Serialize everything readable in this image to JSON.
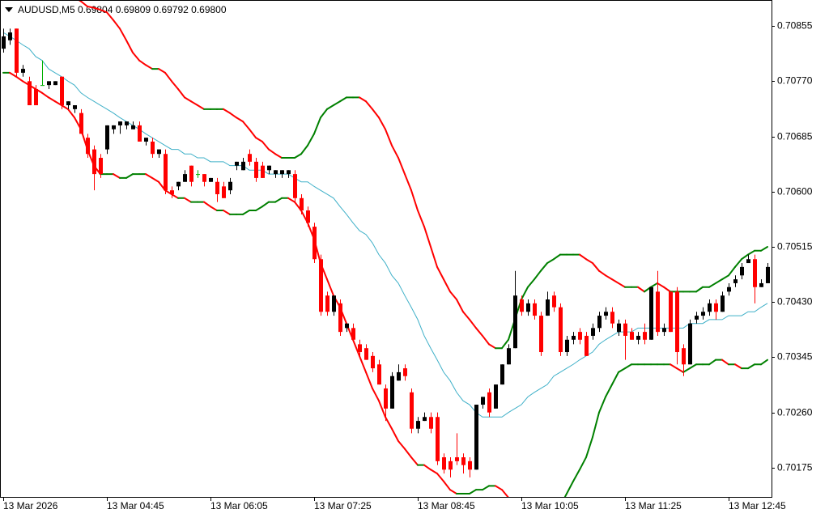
{
  "chart_data": {
    "type": "candlestick",
    "title": "AUDUSD,M5  0.69804 0.69809 0.69792 0.69800",
    "up_color": "#000000",
    "down_color": "#ff0000",
    "doji_color": "#00b000",
    "ylim": [
      0.7013,
      0.70895
    ],
    "yticks": [
      0.70855,
      {
        "value": 0.7077,
        "label": "0.70770"
      },
      0.70685,
      {
        "value": 0.706,
        "label": "0.70600"
      },
      0.70515,
      {
        "value": 0.7043,
        "label": "0.70430"
      },
      0.70345,
      {
        "value": 0.7026,
        "label": "0.70260"
      },
      0.70175
    ],
    "categories": [
      "13 Mar 2026",
      null,
      null,
      null,
      null,
      null,
      null,
      null,
      null,
      null,
      null,
      null,
      null,
      null,
      null,
      null,
      "13 Mar 04:45",
      null,
      null,
      null,
      null,
      null,
      null,
      null,
      null,
      null,
      null,
      null,
      null,
      null,
      null,
      null,
      "13 Mar 06:05",
      null,
      null,
      null,
      null,
      null,
      null,
      null,
      null,
      null,
      null,
      null,
      null,
      null,
      null,
      null,
      "13 Mar 07:25",
      null,
      null,
      null,
      null,
      null,
      null,
      null,
      null,
      null,
      null,
      null,
      null,
      null,
      null,
      null,
      "13 Mar 08:45",
      null,
      null,
      null,
      null,
      null,
      null,
      null,
      null,
      null,
      null,
      null,
      null,
      null,
      null,
      null,
      "13 Mar 10:05",
      null,
      null,
      null,
      null,
      null,
      null,
      null,
      null,
      null,
      null,
      null,
      null,
      null,
      null,
      null,
      "13 Mar 11:25",
      null,
      null,
      null,
      null,
      null,
      null,
      null,
      null,
      null,
      null,
      null,
      null,
      null,
      null,
      null,
      "13 Mar 12:45",
      null,
      null,
      null,
      null,
      null,
      null
    ],
    "ohlc": [
      [
        0.7082,
        0.70851,
        0.70814,
        0.70839
      ],
      [
        0.70833,
        0.70851,
        0.70826,
        0.70845
      ],
      [
        0.70851,
        0.70851,
        0.70777,
        0.70783
      ],
      [
        0.70783,
        0.70795,
        0.70777,
        0.70789
      ],
      [
        0.7077,
        0.70777,
        0.70733,
        0.70733
      ],
      [
        0.70758,
        0.70764,
        0.70733,
        0.70733
      ],
      [
        0.70764,
        0.70802,
        0.70764,
        0.70764
      ],
      [
        0.70764,
        0.7077,
        0.70758,
        0.7077
      ],
      [
        0.70764,
        0.7077,
        0.70764,
        0.7077
      ],
      [
        0.70777,
        0.70777,
        0.70727,
        0.70733
      ],
      [
        0.70733,
        0.70739,
        0.70727,
        0.70739
      ],
      [
        0.70727,
        0.70733,
        0.70721,
        0.70733
      ],
      [
        0.70721,
        0.70727,
        0.70689,
        0.70689
      ],
      [
        0.70683,
        0.70689,
        0.70652,
        0.70658
      ],
      [
        0.70665,
        0.70671,
        0.70602,
        0.70627
      ],
      [
        0.70652,
        0.70658,
        0.70621,
        0.70627
      ],
      [
        0.70665,
        0.70702,
        0.70658,
        0.70702
      ],
      [
        0.70696,
        0.70702,
        0.70689,
        0.70702
      ],
      [
        0.70702,
        0.70708,
        0.70689,
        0.70708
      ],
      [
        0.70702,
        0.70708,
        0.70696,
        0.70708
      ],
      [
        0.70696,
        0.70708,
        0.70696,
        0.70702
      ],
      [
        0.70702,
        0.70708,
        0.70677,
        0.70677
      ],
      [
        0.70677,
        0.70683,
        0.70671,
        0.70683
      ],
      [
        0.70677,
        0.70683,
        0.70652,
        0.70658
      ],
      [
        0.70658,
        0.70665,
        0.70652,
        0.70665
      ],
      [
        0.70658,
        0.70665,
        0.70596,
        0.70602
      ],
      [
        0.70602,
        0.70608,
        0.7059,
        0.70596
      ],
      [
        0.70608,
        0.70615,
        0.70602,
        0.70615
      ],
      [
        0.70615,
        0.70633,
        0.70615,
        0.70627
      ],
      [
        0.7064,
        0.7064,
        0.70608,
        0.70615
      ],
      [
        0.70627,
        0.70633,
        0.70621,
        0.70627
      ],
      [
        0.70627,
        0.70627,
        0.70608,
        0.70615
      ],
      [
        0.70615,
        0.70621,
        0.70615,
        0.70621
      ],
      [
        0.70615,
        0.70621,
        0.70584,
        0.70596
      ],
      [
        0.70608,
        0.70615,
        0.7059,
        0.7059
      ],
      [
        0.70602,
        0.70621,
        0.70596,
        0.70615
      ],
      [
        0.7064,
        0.70646,
        0.70633,
        0.70646
      ],
      [
        0.70633,
        0.70652,
        0.70633,
        0.70646
      ],
      [
        0.70658,
        0.70665,
        0.7064,
        0.70646
      ],
      [
        0.70646,
        0.70652,
        0.70615,
        0.70621
      ],
      [
        0.7064,
        0.70646,
        0.70621,
        0.70621
      ],
      [
        0.70633,
        0.7064,
        0.70627,
        0.7064
      ],
      [
        0.70627,
        0.70633,
        0.70621,
        0.70633
      ],
      [
        0.70627,
        0.70633,
        0.70621,
        0.70633
      ],
      [
        0.70627,
        0.70633,
        0.70621,
        0.70633
      ],
      [
        0.70627,
        0.70633,
        0.70584,
        0.7059
      ],
      [
        0.7059,
        0.70596,
        0.70565,
        0.70571
      ],
      [
        0.70571,
        0.70577,
        0.70546,
        0.70552
      ],
      [
        0.70546,
        0.70552,
        0.7049,
        0.70496
      ],
      [
        0.70496,
        0.70503,
        0.70409,
        0.70415
      ],
      [
        0.7044,
        0.70446,
        0.70409,
        0.70415
      ],
      [
        0.70415,
        0.7044,
        0.70409,
        0.7044
      ],
      [
        0.70428,
        0.70434,
        0.70378,
        0.70384
      ],
      [
        0.7039,
        0.70397,
        0.70384,
        0.70397
      ],
      [
        0.7039,
        0.70397,
        0.70372,
        0.70372
      ],
      [
        0.70365,
        0.70372,
        0.70347,
        0.70353
      ],
      [
        0.70359,
        0.70365,
        0.70341,
        0.70341
      ],
      [
        0.70347,
        0.70353,
        0.70322,
        0.70328
      ],
      [
        0.70334,
        0.70341,
        0.70303,
        0.70303
      ],
      [
        0.70297,
        0.70303,
        0.70247,
        0.70266
      ],
      [
        0.70266,
        0.70322,
        0.70266,
        0.70316
      ],
      [
        0.70309,
        0.70334,
        0.70309,
        0.70322
      ],
      [
        0.70328,
        0.70334,
        0.70309,
        0.70316
      ],
      [
        0.70291,
        0.70297,
        0.70228,
        0.70235
      ],
      [
        0.70235,
        0.70253,
        0.70228,
        0.70247
      ],
      [
        0.70247,
        0.7026,
        0.70247,
        0.70253
      ],
      [
        0.70253,
        0.7026,
        0.70228,
        0.70235
      ],
      [
        0.70253,
        0.7026,
        0.70179,
        0.70185
      ],
      [
        0.70191,
        0.70197,
        0.70166,
        0.70172
      ],
      [
        0.70185,
        0.70191,
        0.7016,
        0.70172
      ],
      [
        0.70191,
        0.70228,
        0.70179,
        0.70185
      ],
      [
        0.70191,
        0.70197,
        0.70166,
        0.70179
      ],
      [
        0.70185,
        0.70191,
        0.7016,
        0.70172
      ],
      [
        0.70172,
        0.70272,
        0.70172,
        0.70272
      ],
      [
        0.70272,
        0.70284,
        0.70266,
        0.70284
      ],
      [
        0.70291,
        0.70297,
        0.70253,
        0.7026
      ],
      [
        0.70266,
        0.70303,
        0.70266,
        0.70303
      ],
      [
        0.70303,
        0.70334,
        0.70303,
        0.70334
      ],
      [
        0.70334,
        0.70365,
        0.70334,
        0.70359
      ],
      [
        0.70359,
        0.70478,
        0.70359,
        0.7044
      ],
      [
        0.70434,
        0.7044,
        0.70409,
        0.70415
      ],
      [
        0.70415,
        0.70434,
        0.70409,
        0.70428
      ],
      [
        0.70428,
        0.70434,
        0.70403,
        0.70409
      ],
      [
        0.70409,
        0.70415,
        0.70347,
        0.70353
      ],
      [
        0.70409,
        0.70446,
        0.70409,
        0.70434
      ],
      [
        0.7044,
        0.70446,
        0.70415,
        0.70422
      ],
      [
        0.70422,
        0.70428,
        0.70347,
        0.70353
      ],
      [
        0.70353,
        0.70378,
        0.70347,
        0.70372
      ],
      [
        0.70372,
        0.70384,
        0.70365,
        0.70378
      ],
      [
        0.70384,
        0.7039,
        0.70365,
        0.70372
      ],
      [
        0.70378,
        0.70384,
        0.70347,
        0.70347
      ],
      [
        0.70378,
        0.70397,
        0.70372,
        0.7039
      ],
      [
        0.7039,
        0.70415,
        0.70384,
        0.70409
      ],
      [
        0.70409,
        0.70422,
        0.70403,
        0.70415
      ],
      [
        0.70415,
        0.70422,
        0.7039,
        0.70397
      ],
      [
        0.70384,
        0.70403,
        0.70378,
        0.70397
      ],
      [
        0.70397,
        0.70403,
        0.70341,
        0.70378
      ],
      [
        0.70384,
        0.7039,
        0.70372,
        0.70372
      ],
      [
        0.70372,
        0.70384,
        0.70365,
        0.70378
      ],
      [
        0.70384,
        0.70397,
        0.70365,
        0.70372
      ],
      [
        0.70372,
        0.70453,
        0.70372,
        0.70453
      ],
      [
        0.70446,
        0.70478,
        0.70378,
        0.70384
      ],
      [
        0.70384,
        0.70397,
        0.70378,
        0.7039
      ],
      [
        0.70446,
        0.70446,
        0.70384,
        0.70384
      ],
      [
        0.70446,
        0.70453,
        0.70334,
        0.70353
      ],
      [
        0.70359,
        0.70365,
        0.70316,
        0.70334
      ],
      [
        0.70334,
        0.70403,
        0.70334,
        0.70397
      ],
      [
        0.70403,
        0.70415,
        0.70397,
        0.70409
      ],
      [
        0.70409,
        0.70422,
        0.70403,
        0.70415
      ],
      [
        0.70415,
        0.70434,
        0.70409,
        0.70428
      ],
      [
        0.70428,
        0.70434,
        0.70403,
        0.70415
      ],
      [
        0.70415,
        0.70446,
        0.70415,
        0.7044
      ],
      [
        0.70446,
        0.70459,
        0.7044,
        0.70453
      ],
      [
        0.70459,
        0.70471,
        0.70453,
        0.70465
      ],
      [
        0.70471,
        0.7049,
        0.70465,
        0.70484
      ],
      [
        0.7049,
        0.70503,
        0.7049,
        0.70496
      ],
      [
        0.70496,
        0.70503,
        0.70428,
        0.70453
      ],
      [
        0.70453,
        0.70465,
        0.70453,
        0.70459
      ],
      [
        0.70459,
        0.7049,
        0.70459,
        0.70484
      ]
    ],
    "bollinger": {
      "middle_color": "#3fb0c8",
      "rising_color": "#008000",
      "falling_color": "#ff0000",
      "upper": [
        0.70945,
        0.70945,
        0.70942,
        0.7094,
        0.70937,
        0.70932,
        0.70927,
        0.70922,
        0.70917,
        0.70912,
        0.70905,
        0.70899,
        0.70893,
        0.70885,
        0.70883,
        0.7088,
        0.70876,
        0.70864,
        0.70851,
        0.70833,
        0.70814,
        0.70802,
        0.70795,
        0.70789,
        0.70789,
        0.70783,
        0.7077,
        0.70758,
        0.70745,
        0.70739,
        0.70733,
        0.70727,
        0.70727,
        0.70727,
        0.70727,
        0.70721,
        0.70714,
        0.70708,
        0.70696,
        0.70683,
        0.70677,
        0.70665,
        0.70658,
        0.70652,
        0.70652,
        0.70652,
        0.70658,
        0.70671,
        0.70689,
        0.70714,
        0.70727,
        0.70733,
        0.70739,
        0.70745,
        0.70745,
        0.70745,
        0.70739,
        0.70727,
        0.70714,
        0.70696,
        0.70671,
        0.70652,
        0.70627,
        0.70602,
        0.70571,
        0.70546,
        0.70515,
        0.70484,
        0.70465,
        0.70446,
        0.70434,
        0.70415,
        0.70403,
        0.7039,
        0.70378,
        0.70365,
        0.70359,
        0.70359,
        0.70372,
        0.70403,
        0.70434,
        0.70453,
        0.70465,
        0.70478,
        0.7049,
        0.70496,
        0.70503,
        0.70503,
        0.70503,
        0.70503,
        0.70496,
        0.7049,
        0.70478,
        0.70471,
        0.70465,
        0.70459,
        0.70453,
        0.70453,
        0.70453,
        0.70446,
        0.70453,
        0.70459,
        0.70453,
        0.70446,
        0.70446,
        0.70446,
        0.70446,
        0.70446,
        0.70453,
        0.70453,
        0.70459,
        0.70465,
        0.70471,
        0.70484,
        0.70496,
        0.70503,
        0.70509,
        0.70509,
        0.70515
      ],
      "middle": [
        0.70845,
        0.70839,
        0.70833,
        0.70826,
        0.7082,
        0.70808,
        0.70802,
        0.70789,
        0.70783,
        0.70777,
        0.7077,
        0.70764,
        0.70752,
        0.70745,
        0.70739,
        0.70733,
        0.70727,
        0.70721,
        0.70714,
        0.70708,
        0.70702,
        0.70696,
        0.70689,
        0.70683,
        0.70677,
        0.70671,
        0.70665,
        0.70665,
        0.70658,
        0.70658,
        0.70652,
        0.70652,
        0.70646,
        0.70646,
        0.70646,
        0.7064,
        0.7064,
        0.7064,
        0.70633,
        0.70633,
        0.70633,
        0.70627,
        0.70627,
        0.70627,
        0.70627,
        0.70621,
        0.70615,
        0.70615,
        0.70608,
        0.70602,
        0.70596,
        0.7059,
        0.70577,
        0.70565,
        0.70552,
        0.7054,
        0.70534,
        0.70521,
        0.70503,
        0.7049,
        0.70471,
        0.70459,
        0.7044,
        0.70422,
        0.70403,
        0.70378,
        0.70359,
        0.70341,
        0.70322,
        0.70309,
        0.70291,
        0.70278,
        0.70272,
        0.7026,
        0.70253,
        0.70253,
        0.70253,
        0.70253,
        0.7026,
        0.70266,
        0.70272,
        0.70284,
        0.70291,
        0.70297,
        0.70303,
        0.70316,
        0.70322,
        0.70328,
        0.70334,
        0.70341,
        0.70347,
        0.70353,
        0.70365,
        0.70372,
        0.70378,
        0.70384,
        0.70384,
        0.70384,
        0.7039,
        0.7039,
        0.7039,
        0.7039,
        0.7039,
        0.7039,
        0.7039,
        0.7039,
        0.70397,
        0.70397,
        0.70397,
        0.70403,
        0.70403,
        0.70403,
        0.70409,
        0.70409,
        0.70409,
        0.70415,
        0.70415,
        0.70422,
        0.70428
      ],
      "lower": [
        0.70783,
        0.70783,
        0.70777,
        0.7077,
        0.70764,
        0.70758,
        0.70752,
        0.70745,
        0.70739,
        0.70733,
        0.70727,
        0.70714,
        0.70696,
        0.70665,
        0.7064,
        0.70627,
        0.70627,
        0.70627,
        0.70621,
        0.70621,
        0.70627,
        0.70627,
        0.70627,
        0.70621,
        0.70615,
        0.70602,
        0.70596,
        0.7059,
        0.7059,
        0.70584,
        0.70584,
        0.70584,
        0.70577,
        0.70571,
        0.70571,
        0.70565,
        0.70565,
        0.70565,
        0.70571,
        0.70571,
        0.70577,
        0.70584,
        0.70584,
        0.7059,
        0.7059,
        0.70584,
        0.70571,
        0.70552,
        0.70527,
        0.7049,
        0.70465,
        0.7044,
        0.70422,
        0.70397,
        0.70372,
        0.70347,
        0.70322,
        0.70297,
        0.70278,
        0.70253,
        0.70235,
        0.70216,
        0.70204,
        0.70191,
        0.70179,
        0.70179,
        0.70172,
        0.70166,
        0.70154,
        0.70141,
        0.70135,
        0.70135,
        0.70135,
        0.70141,
        0.70141,
        0.70147,
        0.70147,
        0.70141,
        0.70129,
        0.7011,
        0.70091,
        0.70079,
        0.70073,
        0.70073,
        0.70079,
        0.70098,
        0.70116,
        0.70135,
        0.70154,
        0.70172,
        0.70191,
        0.70222,
        0.7026,
        0.70284,
        0.70303,
        0.70322,
        0.70328,
        0.70334,
        0.70334,
        0.70334,
        0.70334,
        0.70334,
        0.70334,
        0.70334,
        0.70328,
        0.70322,
        0.70328,
        0.70334,
        0.70334,
        0.70334,
        0.70341,
        0.70341,
        0.70334,
        0.70334,
        0.70328,
        0.70328,
        0.70334,
        0.70334,
        0.70341
      ]
    }
  }
}
